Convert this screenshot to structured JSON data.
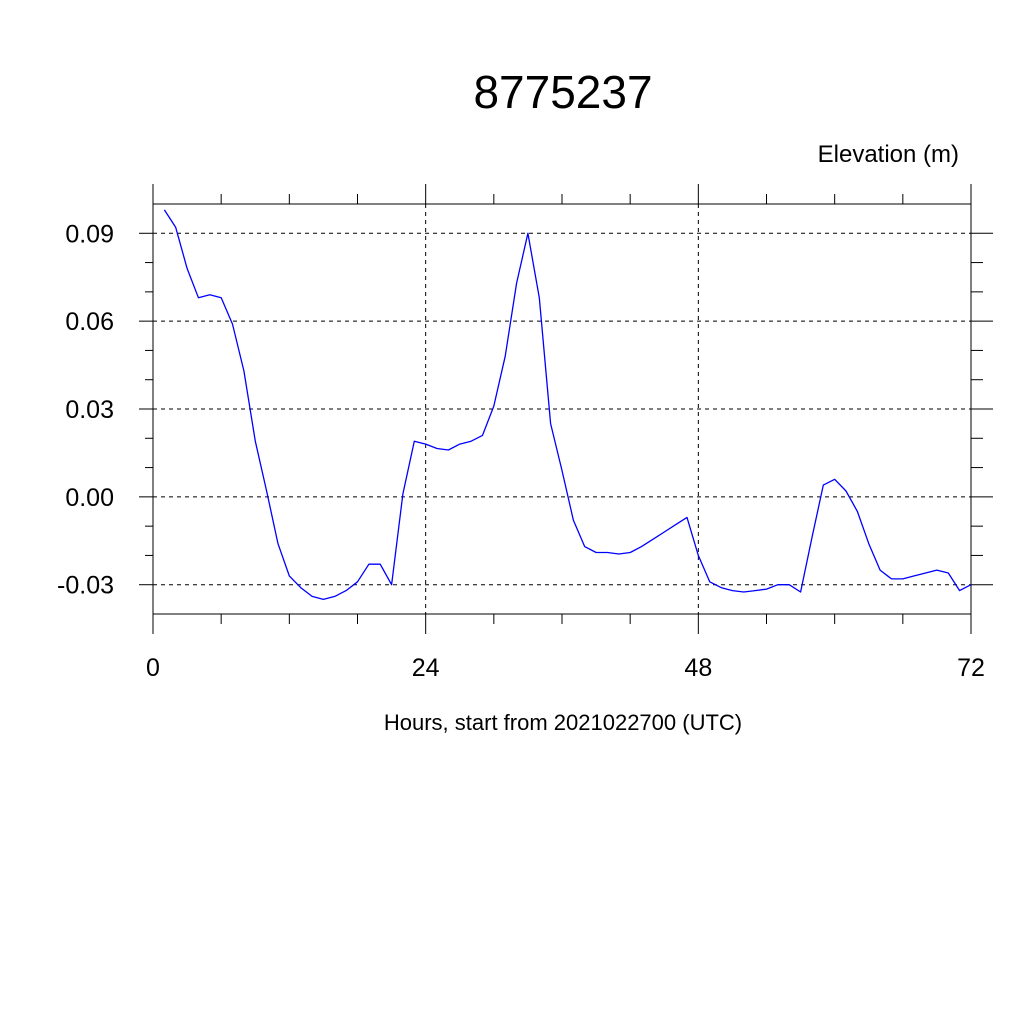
{
  "chart_data": {
    "type": "line",
    "title": "8775237",
    "units_label": "Elevation (m)",
    "xlabel": "Hours, start from 2021022700 (UTC)",
    "xlim": [
      0,
      72
    ],
    "ylim": [
      -0.04,
      0.1
    ],
    "x_ticks": [
      0,
      24,
      48,
      72
    ],
    "x_tick_labels": [
      "0",
      "24",
      "48",
      "72"
    ],
    "x_minor_ticks": [
      6,
      12,
      18,
      30,
      36,
      42,
      54,
      60,
      66
    ],
    "y_ticks": [
      0.09,
      0.06,
      0.03,
      0.0,
      -0.03
    ],
    "y_tick_labels": [
      "0.09",
      "0.06",
      "0.03",
      "0.00",
      "-0.03"
    ],
    "y_minor_ticks": [
      0.08,
      0.07,
      0.05,
      0.04,
      0.02,
      0.01,
      -0.01,
      -0.02
    ],
    "grid": true,
    "series": [
      {
        "color": "#0000ff",
        "x": [
          1,
          2,
          3,
          4,
          5,
          6,
          7,
          8,
          9,
          10,
          11,
          12,
          13,
          14,
          15,
          16,
          17,
          18,
          19,
          20,
          21,
          22,
          23,
          24,
          25,
          26,
          27,
          28,
          29,
          30,
          31,
          32,
          33,
          34,
          35,
          36,
          37,
          38,
          39,
          40,
          41,
          42,
          43,
          44,
          45,
          46,
          47,
          48,
          49,
          50,
          51,
          52,
          53,
          54,
          55,
          56,
          57,
          58,
          59,
          60,
          61,
          62,
          63,
          64,
          65,
          66,
          67,
          68,
          69,
          70,
          71,
          72
        ],
        "values": [
          0.098,
          0.092,
          0.078,
          0.068,
          0.069,
          0.068,
          0.059,
          0.043,
          0.019,
          0.002,
          -0.016,
          -0.027,
          -0.031,
          -0.034,
          -0.035,
          -0.034,
          -0.032,
          -0.029,
          -0.023,
          -0.023,
          -0.03,
          0.001,
          0.019,
          0.018,
          0.0165,
          0.016,
          0.018,
          0.019,
          0.021,
          0.031,
          0.048,
          0.073,
          0.09,
          0.068,
          0.025,
          0.009,
          -0.008,
          -0.017,
          -0.019,
          -0.019,
          -0.0195,
          -0.019,
          -0.017,
          -0.0145,
          -0.012,
          -0.0095,
          -0.007,
          -0.02,
          -0.029,
          -0.031,
          -0.032,
          -0.0325,
          -0.032,
          -0.0315,
          -0.03,
          -0.03,
          -0.0325,
          -0.014,
          0.004,
          0.006,
          0.002,
          -0.005,
          -0.016,
          -0.025,
          -0.028,
          -0.028,
          -0.027,
          -0.026,
          -0.025,
          -0.026,
          -0.032,
          -0.03
        ]
      }
    ]
  }
}
